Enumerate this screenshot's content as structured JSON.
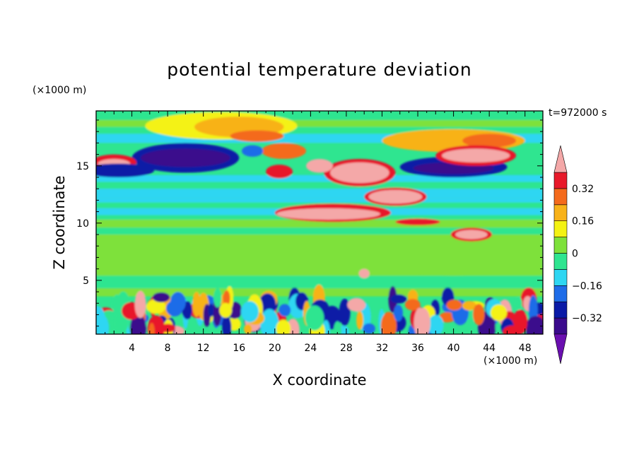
{
  "chart_data": {
    "type": "heatmap",
    "title": "potential temperature deviation",
    "xlabel": "X coordinate",
    "ylabel": "Z coordinate",
    "x_unit": "(×1000 m)",
    "y_unit": "(×1000 m)",
    "time_label": "t=972000 s",
    "xlim": [
      0,
      50
    ],
    "ylim": [
      0.3,
      19.8
    ],
    "x_ticks": [
      4,
      8,
      12,
      16,
      20,
      24,
      28,
      32,
      36,
      40,
      44,
      48
    ],
    "y_ticks": [
      5,
      10,
      15
    ],
    "colorbar": {
      "levels": [
        -0.4,
        -0.32,
        -0.24,
        -0.16,
        -0.08,
        0,
        0.08,
        0.16,
        0.24,
        0.32,
        0.4
      ],
      "tick_labels": [
        "-0.32",
        "-0.16",
        "0",
        "0.16",
        "0.32"
      ],
      "tick_values": [
        -0.32,
        -0.16,
        0,
        0.16,
        0.32
      ],
      "colors": [
        "#3a0a8c",
        "#0a1aa6",
        "#1e6ce8",
        "#2ed6f2",
        "#2fe590",
        "#7ee13a",
        "#f4f213",
        "#f8b219",
        "#f46a1c",
        "#e8192a"
      ],
      "under_color": "#6a0fb0",
      "over_color": "#f4a8a8"
    },
    "features": [
      {
        "name": "positive anomaly",
        "x": [
          21.5,
          31
        ],
        "z": [
          10.8,
          12.6
        ],
        "level": "over"
      },
      {
        "name": "positive anomaly",
        "x": [
          26.5,
          32.5
        ],
        "z": [
          13.3,
          15.5
        ],
        "level": "over"
      },
      {
        "name": "positive anomaly",
        "x": [
          38,
          47
        ],
        "z": [
          14.8,
          16.8
        ],
        "level": "over"
      },
      {
        "name": "negative anomaly",
        "x": [
          4.5,
          16
        ],
        "z": [
          14.5,
          17
        ],
        "level": "under"
      },
      {
        "name": "negative anomaly",
        "x": [
          34.5,
          45
        ],
        "z": [
          14.2,
          16
        ],
        "level": "under"
      },
      {
        "name": "warm band",
        "x": [
          8,
          24
        ],
        "z": [
          17.2,
          19.7
        ],
        "level": 0.16
      },
      {
        "name": "near-surface turbulence",
        "x": [
          0,
          50
        ],
        "z": [
          0.3,
          3.5
        ],
        "level": "mixed"
      }
    ]
  }
}
